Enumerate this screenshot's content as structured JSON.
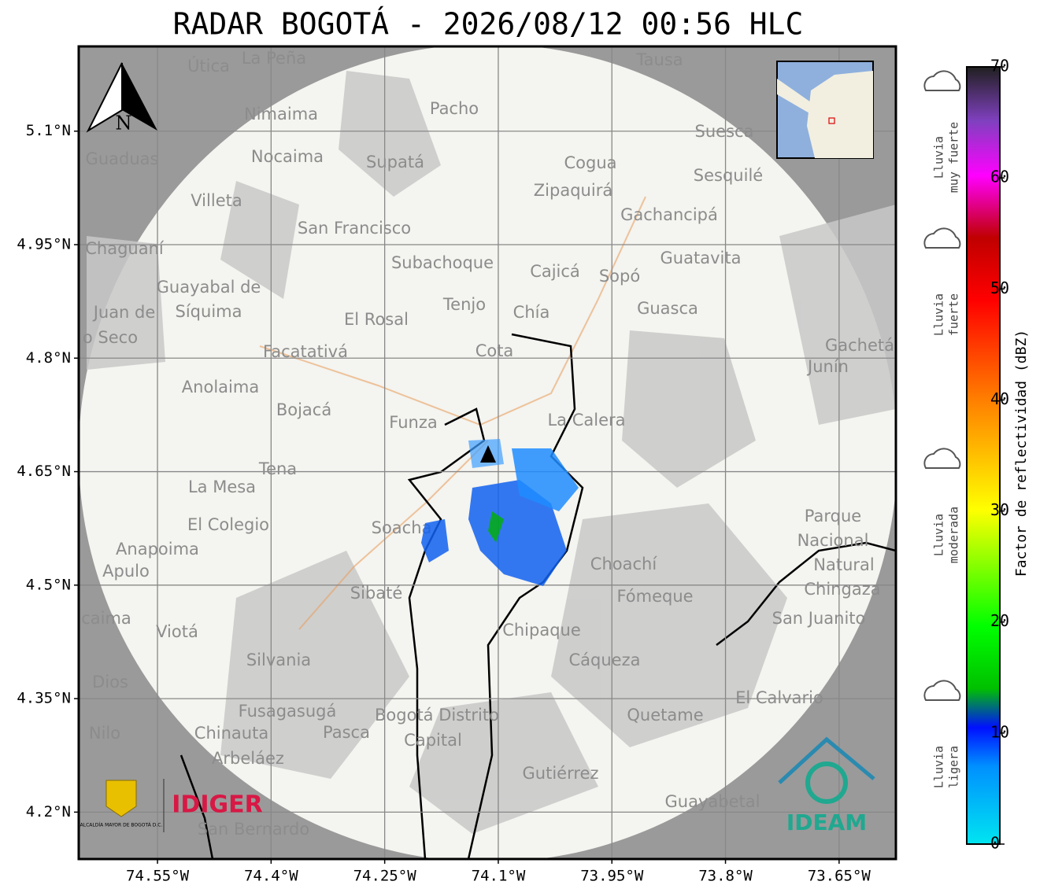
{
  "title": "RADAR BOGOTÁ - 2026/08/12 00:56 HLC",
  "map": {
    "xlim": [
      -74.654,
      -73.575
    ],
    "ylim": [
      4.138,
      5.212
    ],
    "xticks": [
      {
        "value": -74.55,
        "label": "74.55°W"
      },
      {
        "value": -74.4,
        "label": "74.4°W"
      },
      {
        "value": -74.25,
        "label": "74.25°W"
      },
      {
        "value": -74.1,
        "label": "74.1°W"
      },
      {
        "value": -73.95,
        "label": "73.95°W"
      },
      {
        "value": -73.8,
        "label": "73.8°W"
      },
      {
        "value": -73.65,
        "label": "73.65°W"
      }
    ],
    "yticks": [
      {
        "value": 5.1,
        "label": "5.1°N"
      },
      {
        "value": 4.95,
        "label": "4.95°N"
      },
      {
        "value": 4.8,
        "label": "4.8°N"
      },
      {
        "value": 4.65,
        "label": "4.65°N"
      },
      {
        "value": 4.5,
        "label": "4.5°N"
      },
      {
        "value": 4.35,
        "label": "4.35°N"
      },
      {
        "value": 4.2,
        "label": "4.2°N"
      }
    ],
    "north": "N",
    "places": [
      "La Peña",
      "Útica",
      "Tausa",
      "Pacho",
      "Nimaima",
      "Guaduas",
      "Nocaima",
      "Supatá",
      "Suesca",
      "Cogua",
      "Sesquilé",
      "Zipaquirá",
      "Villeta",
      "Gachancipá",
      "San Francisco",
      "Chaguaní",
      "Guatavita",
      "Subachoque",
      "Cajicá",
      "Sopó",
      "Guayabal de",
      "Síquima",
      "Tenjo",
      "Chía",
      "Juan de",
      "o Seco",
      "Guasca",
      "El Rosal",
      "Gachetá",
      "Junín",
      "Facatativá",
      "Cota",
      "Anolaima",
      "Bojacá",
      "Funza",
      "La Calera",
      "Tena",
      "La Mesa",
      "Soacha",
      "El Colegio",
      "Parque",
      "Nacional",
      "Natural",
      "Chingaza",
      "Anapoima",
      "Apulo",
      "Choachí",
      "Sibaté",
      "Fómeque",
      "San Juanito",
      "caima",
      "Viotá",
      "Chipaque",
      "Silvania",
      "Cáqueza",
      "Dios",
      "El Calvario",
      "Fusagasugá",
      "Bogotá Distrito",
      "Quetame",
      "Nilo",
      "Chinauta",
      "Pasca",
      "Capital",
      "Arbeláez",
      "Gutiérrez",
      "Guayabetal",
      "San Bernardo"
    ]
  },
  "logos": {
    "alcaldia": "ALCALDÍA MAYOR DE BOGOTÁ D.C.",
    "idiger": "IDIGER",
    "ideam": "IDEAM"
  },
  "colorbar": {
    "label": "Factor de reflectividad (dBZ)",
    "lim": [
      0,
      70
    ],
    "ticks": [
      0,
      10,
      20,
      30,
      40,
      50,
      60,
      70
    ],
    "categories": [
      {
        "lines": [
          "Lluvia",
          "muy fuerte"
        ]
      },
      {
        "lines": [
          "Lluvia",
          "fuerte"
        ]
      },
      {
        "lines": [
          "Lluvia",
          "moderada"
        ]
      },
      {
        "lines": [
          "Lluvia",
          "ligera"
        ]
      }
    ]
  }
}
